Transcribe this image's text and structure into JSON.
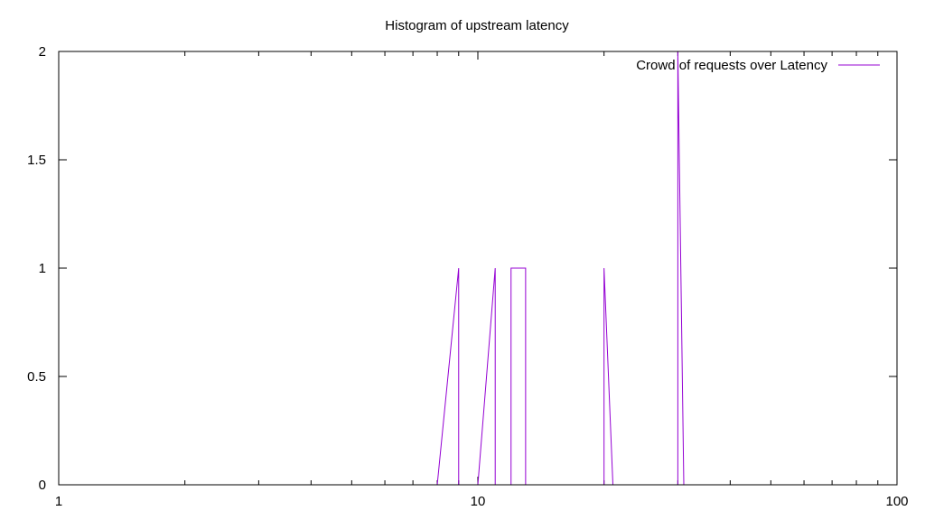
{
  "chart_data": {
    "type": "line",
    "title": "Histogram of upstream latency",
    "xlabel": "",
    "ylabel": "",
    "x_scale": "log",
    "xlim": [
      1,
      100
    ],
    "ylim": [
      0,
      2
    ],
    "x_ticks": [
      {
        "value": 1,
        "label": "1"
      },
      {
        "value": 10,
        "label": "10"
      },
      {
        "value": 100,
        "label": "100"
      }
    ],
    "y_ticks": [
      {
        "value": 0,
        "label": "0"
      },
      {
        "value": 0.5,
        "label": "0.5"
      },
      {
        "value": 1,
        "label": "1"
      },
      {
        "value": 1.5,
        "label": "1.5"
      },
      {
        "value": 2,
        "label": "2"
      }
    ],
    "grid": false,
    "legend_position": "top-right",
    "series": [
      {
        "name": "Crowd of requests over Latency",
        "color": "#9400d3",
        "x": [
          8,
          9,
          9,
          10,
          11,
          11,
          12,
          12,
          13,
          13,
          20,
          20,
          21,
          30,
          30,
          31
        ],
        "y": [
          0,
          1,
          0,
          0,
          1,
          0,
          0,
          1,
          1,
          0,
          0,
          1,
          0,
          0,
          2,
          0
        ]
      }
    ]
  }
}
